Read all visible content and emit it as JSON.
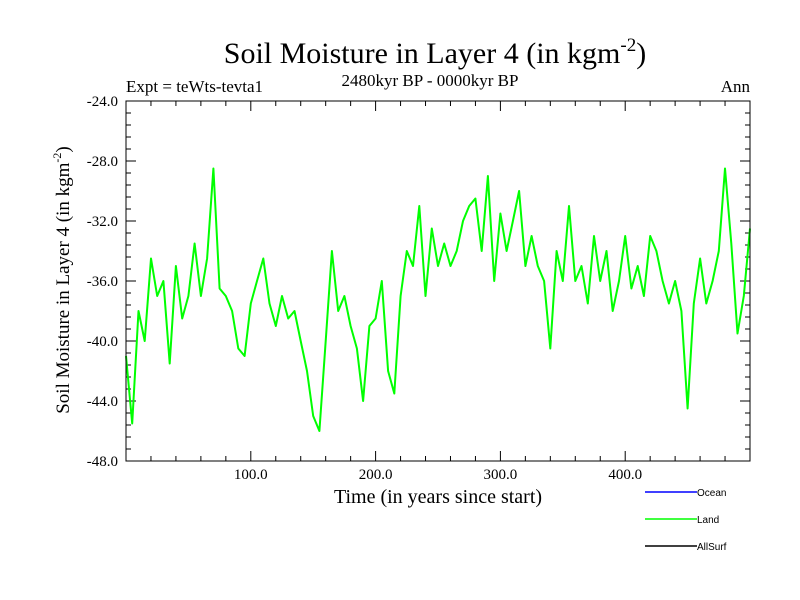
{
  "chart_data": {
    "type": "line",
    "title_main": "Soil Moisture in Layer 4 (in kgm",
    "title_sup": "-2",
    "title_close": ")",
    "subtitle_left": "Expt = teWts-tevta1",
    "subtitle_center": "2480kyr BP - 0000kyr BP",
    "subtitle_right": "Ann",
    "xlabel": "Time (in years since start)",
    "ylabel_main": "Soil Moisture in Layer 4 (in kgm",
    "ylabel_sup": "-2",
    "ylabel_close": ")",
    "xlim": [
      0,
      500
    ],
    "ylim": [
      -48,
      -24
    ],
    "x_ticks": [
      {
        "value": 100,
        "label": "100.0"
      },
      {
        "value": 200,
        "label": "200.0"
      },
      {
        "value": 300,
        "label": "300.0"
      },
      {
        "value": 400,
        "label": "400.0"
      }
    ],
    "y_ticks": [
      {
        "value": -24,
        "label": "-24.0"
      },
      {
        "value": -28,
        "label": "-28.0"
      },
      {
        "value": -32,
        "label": "-32.0"
      },
      {
        "value": -36,
        "label": "-36.0"
      },
      {
        "value": -40,
        "label": "-40.0"
      },
      {
        "value": -44,
        "label": "-44.0"
      },
      {
        "value": -48,
        "label": "-48.0"
      }
    ],
    "legend": [
      {
        "name": "Ocean",
        "color": "#0000ff"
      },
      {
        "name": "Land",
        "color": "#00ff00"
      },
      {
        "name": "AllSurf",
        "color": "#000000"
      }
    ],
    "series": [
      {
        "name": "Land",
        "color": "#00ff00",
        "x": [
          0,
          5,
          10,
          15,
          20,
          25,
          30,
          35,
          40,
          45,
          50,
          55,
          60,
          65,
          70,
          75,
          80,
          85,
          90,
          95,
          100,
          105,
          110,
          115,
          120,
          125,
          130,
          135,
          140,
          145,
          150,
          155,
          160,
          165,
          170,
          175,
          180,
          185,
          190,
          195,
          200,
          205,
          210,
          215,
          220,
          225,
          230,
          235,
          240,
          245,
          250,
          255,
          260,
          265,
          270,
          275,
          280,
          285,
          290,
          295,
          300,
          305,
          310,
          315,
          320,
          325,
          330,
          335,
          340,
          345,
          350,
          355,
          360,
          365,
          370,
          375,
          380,
          385,
          390,
          395,
          400,
          405,
          410,
          415,
          420,
          425,
          430,
          435,
          440,
          445,
          450,
          455,
          460,
          465,
          470,
          475,
          480,
          485,
          490,
          495,
          500
        ],
        "values": [
          -41.0,
          -45.5,
          -38.0,
          -40.0,
          -34.5,
          -37.0,
          -36.0,
          -41.5,
          -35.0,
          -38.5,
          -37.0,
          -33.5,
          -37.0,
          -34.5,
          -28.5,
          -36.5,
          -37.0,
          -38.0,
          -40.5,
          -41.0,
          -37.5,
          -36.0,
          -34.5,
          -37.5,
          -39.0,
          -37.0,
          -38.5,
          -38.0,
          -40.0,
          -42.0,
          -45.0,
          -46.0,
          -40.0,
          -34.0,
          -38.0,
          -37.0,
          -39.0,
          -40.5,
          -44.0,
          -39.0,
          -38.5,
          -36.0,
          -42.0,
          -43.5,
          -37.0,
          -34.0,
          -35.0,
          -31.0,
          -37.0,
          -32.5,
          -35.0,
          -33.5,
          -35.0,
          -34.0,
          -32.0,
          -31.0,
          -30.5,
          -34.0,
          -29.0,
          -36.0,
          -31.5,
          -34.0,
          -32.0,
          -30.0,
          -35.0,
          -33.0,
          -35.0,
          -36.0,
          -40.5,
          -34.0,
          -36.0,
          -31.0,
          -36.0,
          -35.0,
          -37.5,
          -33.0,
          -36.0,
          -34.0,
          -38.0,
          -36.0,
          -33.0,
          -36.5,
          -35.0,
          -37.0,
          -33.0,
          -34.0,
          -36.0,
          -37.5,
          -36.0,
          -38.0,
          -44.5,
          -37.5,
          -34.5,
          -37.5,
          -36.0,
          -34.0,
          -28.5,
          -33.5,
          -39.5,
          -37.0,
          -32.5
        ]
      }
    ]
  }
}
